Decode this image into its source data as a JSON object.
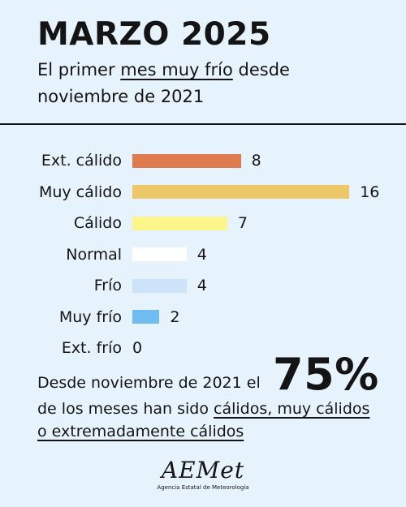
{
  "header": {
    "title": "MARZO 2025",
    "subtitle_pre": "El primer ",
    "subtitle_link": "mes muy frío",
    "subtitle_post": " desde",
    "subtitle_line2": "noviembre de 2021"
  },
  "chart_data": {
    "type": "bar",
    "orientation": "horizontal",
    "categories": [
      "Ext. cálido",
      "Muy cálido",
      "Cálido",
      "Normal",
      "Frío",
      "Muy frío",
      "Ext. frío"
    ],
    "values": [
      8,
      16,
      7,
      4,
      4,
      2,
      0
    ],
    "colors": [
      "#e07b4f",
      "#eec868",
      "#fbf58a",
      "#ffffff",
      "#cde4f8",
      "#6fbdf0",
      "#6fbdf0"
    ],
    "xlim": [
      0,
      16
    ],
    "grid": false,
    "title": "",
    "xlabel": "",
    "ylabel": ""
  },
  "stat": {
    "line1": "Desde noviembre de 2021 el",
    "big": "75%",
    "line2_pre": "de los meses han sido ",
    "line2_u": "cálidos, muy cálidos",
    "line3_u": "o extremadamente cálidos"
  },
  "logo": {
    "mark": "AEMet",
    "sub": "Agencia Estatal de Meteorología"
  },
  "colors": {
    "background": "#e6f3fc",
    "text": "#141414"
  }
}
